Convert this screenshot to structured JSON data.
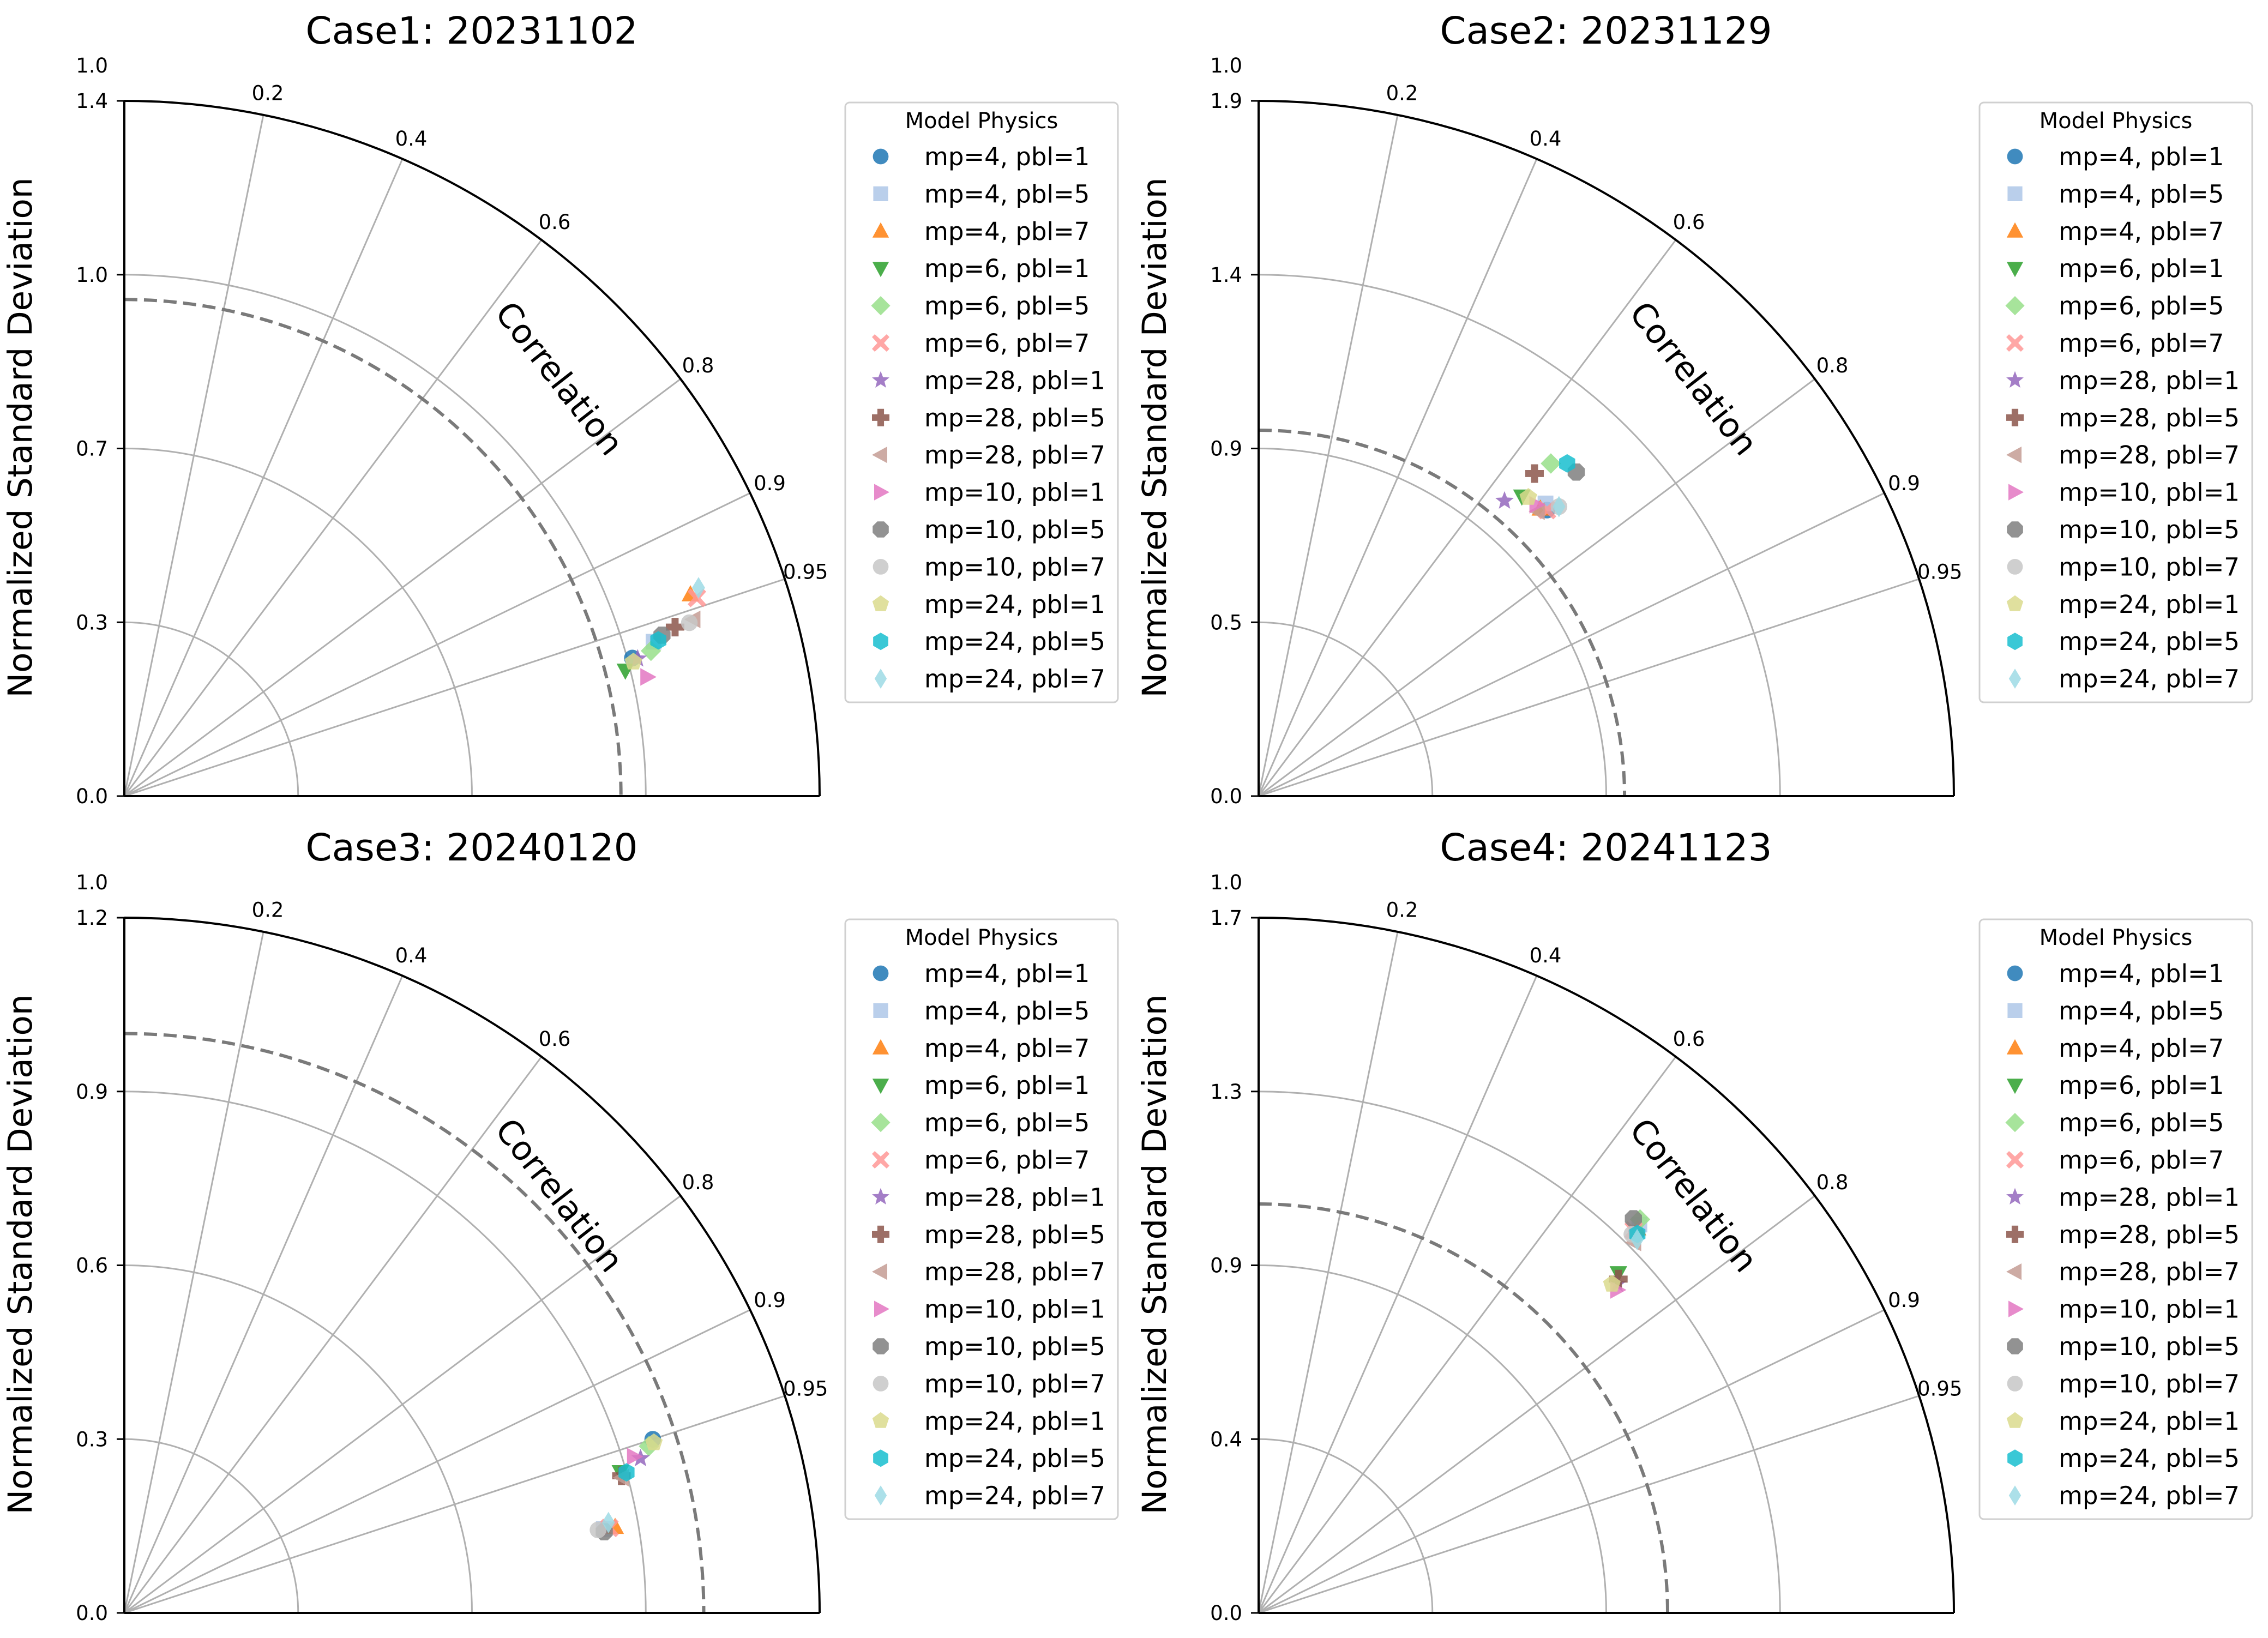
{
  "chart_data": [
    {
      "type": "scatter",
      "subtype": "taylor-diagram",
      "title": "Case1: 20231102",
      "ylabel": "Normalized Standard Deviation",
      "corr_label": "Correlation",
      "std_max": 1.4,
      "std_ticks": [
        "0.0",
        "0.3",
        "0.7",
        "1.0",
        "1.4"
      ],
      "top_label": "1.0",
      "corr_ticks": [
        "0.95",
        "0.9",
        "0.8",
        "0.6",
        "0.4",
        "0.2"
      ],
      "reference_std": 1.0,
      "legend_title": "Model Physics",
      "legend_position": "right",
      "points": [
        {
          "name": "mp=4, pbl=1",
          "std": 1.06,
          "corr": 0.965
        },
        {
          "name": "mp=4, pbl=5",
          "std": 1.11,
          "corr": 0.96
        },
        {
          "name": "mp=4, pbl=7",
          "std": 1.21,
          "corr": 0.942
        },
        {
          "name": "mp=6, pbl=1",
          "std": 1.04,
          "corr": 0.97
        },
        {
          "name": "mp=6, pbl=5",
          "std": 1.1,
          "corr": 0.964
        },
        {
          "name": "mp=6, pbl=7",
          "std": 1.22,
          "corr": 0.945
        },
        {
          "name": "mp=28, pbl=1",
          "std": 1.07,
          "corr": 0.966
        },
        {
          "name": "mp=28, pbl=5",
          "std": 1.16,
          "corr": 0.956
        },
        {
          "name": "mp=28, pbl=7",
          "std": 1.2,
          "corr": 0.955
        },
        {
          "name": "mp=10, pbl=1",
          "std": 1.08,
          "corr": 0.975
        },
        {
          "name": "mp=10, pbl=5",
          "std": 1.13,
          "corr": 0.958
        },
        {
          "name": "mp=10, pbl=7",
          "std": 1.19,
          "corr": 0.956
        },
        {
          "name": "mp=24, pbl=1",
          "std": 1.06,
          "corr": 0.967
        },
        {
          "name": "mp=24, pbl=5",
          "std": 1.12,
          "corr": 0.96
        },
        {
          "name": "mp=24, pbl=7",
          "std": 1.23,
          "corr": 0.94
        }
      ]
    },
    {
      "type": "scatter",
      "subtype": "taylor-diagram",
      "title": "Case2: 20231129",
      "ylabel": "Normalized Standard Deviation",
      "corr_label": "Correlation",
      "std_max": 1.9,
      "std_ticks": [
        "0.0",
        "0.5",
        "0.9",
        "1.4",
        "1.9"
      ],
      "top_label": "1.0",
      "corr_ticks": [
        "0.95",
        "0.9",
        "0.8",
        "0.6",
        "0.4",
        "0.2"
      ],
      "reference_std": 1.0,
      "legend_title": "Model Physics",
      "legend_position": "right",
      "points": [
        {
          "name": "mp=4, pbl=1",
          "std": 1.11,
          "corr": 0.71
        },
        {
          "name": "mp=4, pbl=5",
          "std": 1.12,
          "corr": 0.7
        },
        {
          "name": "mp=4, pbl=7",
          "std": 1.1,
          "corr": 0.7
        },
        {
          "name": "mp=6, pbl=1",
          "std": 1.09,
          "corr": 0.66
        },
        {
          "name": "mp=6, pbl=5",
          "std": 1.21,
          "corr": 0.66
        },
        {
          "name": "mp=6, pbl=7",
          "std": 1.11,
          "corr": 0.71
        },
        {
          "name": "mp=28, pbl=1",
          "std": 1.05,
          "corr": 0.64
        },
        {
          "name": "mp=28, pbl=5",
          "std": 1.16,
          "corr": 0.65
        },
        {
          "name": "mp=28, pbl=7",
          "std": 1.09,
          "corr": 0.7
        },
        {
          "name": "mp=10, pbl=1",
          "std": 1.1,
          "corr": 0.69
        },
        {
          "name": "mp=10, pbl=5",
          "std": 1.24,
          "corr": 0.7
        },
        {
          "name": "mp=10, pbl=7",
          "std": 1.14,
          "corr": 0.72
        },
        {
          "name": "mp=24, pbl=1",
          "std": 1.1,
          "corr": 0.67
        },
        {
          "name": "mp=24, pbl=5",
          "std": 1.24,
          "corr": 0.68
        },
        {
          "name": "mp=24, pbl=7",
          "std": 1.14,
          "corr": 0.72
        }
      ]
    },
    {
      "type": "scatter",
      "subtype": "taylor-diagram",
      "title": "Case3: 20240120",
      "ylabel": "Normalized Standard Deviation",
      "corr_label": "Correlation",
      "std_max": 1.2,
      "std_ticks": [
        "0.0",
        "0.3",
        "0.6",
        "0.9",
        "1.2"
      ],
      "top_label": "1.0",
      "corr_ticks": [
        "0.95",
        "0.9",
        "0.8",
        "0.6",
        "0.4",
        "0.2"
      ],
      "reference_std": 1.0,
      "legend_title": "Model Physics",
      "legend_position": "right",
      "points": [
        {
          "name": "mp=4, pbl=1",
          "std": 0.96,
          "corr": 0.95
        },
        {
          "name": "mp=4, pbl=5",
          "std": 0.84,
          "corr": 0.985
        },
        {
          "name": "mp=4, pbl=7",
          "std": 0.86,
          "corr": 0.985
        },
        {
          "name": "mp=6, pbl=1",
          "std": 0.89,
          "corr": 0.962
        },
        {
          "name": "mp=6, pbl=5",
          "std": 0.95,
          "corr": 0.953
        },
        {
          "name": "mp=6, pbl=7",
          "std": 0.85,
          "corr": 0.985
        },
        {
          "name": "mp=28, pbl=1",
          "std": 0.93,
          "corr": 0.958
        },
        {
          "name": "mp=28, pbl=5",
          "std": 0.89,
          "corr": 0.964
        },
        {
          "name": "mp=28, pbl=7",
          "std": 0.89,
          "corr": 0.965
        },
        {
          "name": "mp=10, pbl=1",
          "std": 0.92,
          "corr": 0.956
        },
        {
          "name": "mp=10, pbl=5",
          "std": 0.84,
          "corr": 0.986
        },
        {
          "name": "mp=10, pbl=7",
          "std": 0.83,
          "corr": 0.985
        },
        {
          "name": "mp=24, pbl=1",
          "std": 0.96,
          "corr": 0.952
        },
        {
          "name": "mp=24, pbl=5",
          "std": 0.9,
          "corr": 0.963
        },
        {
          "name": "mp=24, pbl=7",
          "std": 0.85,
          "corr": 0.983
        }
      ]
    },
    {
      "type": "scatter",
      "subtype": "taylor-diagram",
      "title": "Case4: 20241123",
      "ylabel": "Normalized Standard Deviation",
      "corr_label": "Correlation",
      "std_max": 1.7,
      "std_ticks": [
        "0.0",
        "0.4",
        "0.9",
        "1.3",
        "1.7"
      ],
      "top_label": "1.0",
      "corr_ticks": [
        "0.95",
        "0.9",
        "0.8",
        "0.6",
        "0.4",
        "0.2"
      ],
      "reference_std": 1.0,
      "legend_title": "Model Physics",
      "legend_position": "right",
      "points": [
        {
          "name": "mp=4, pbl=1",
          "std": 1.31,
          "corr": 0.705
        },
        {
          "name": "mp=4, pbl=5",
          "std": 1.33,
          "corr": 0.7
        },
        {
          "name": "mp=4, pbl=7",
          "std": 1.32,
          "corr": 0.702
        },
        {
          "name": "mp=6, pbl=1",
          "std": 1.21,
          "corr": 0.727
        },
        {
          "name": "mp=6, pbl=5",
          "std": 1.34,
          "corr": 0.696
        },
        {
          "name": "mp=6, pbl=7",
          "std": 1.31,
          "corr": 0.7
        },
        {
          "name": "mp=28, pbl=1",
          "std": 1.19,
          "corr": 0.737
        },
        {
          "name": "mp=28, pbl=5",
          "std": 1.2,
          "corr": 0.733
        },
        {
          "name": "mp=28, pbl=7",
          "std": 1.29,
          "corr": 0.712
        },
        {
          "name": "mp=10, pbl=1",
          "std": 1.18,
          "corr": 0.743
        },
        {
          "name": "mp=10, pbl=5",
          "std": 1.33,
          "corr": 0.689
        },
        {
          "name": "mp=10, pbl=7",
          "std": 1.3,
          "corr": 0.702
        },
        {
          "name": "mp=24, pbl=1",
          "std": 1.18,
          "corr": 0.732
        },
        {
          "name": "mp=24, pbl=5",
          "std": 1.31,
          "corr": 0.707
        },
        {
          "name": "mp=24, pbl=7",
          "std": 1.3,
          "corr": 0.712
        }
      ]
    }
  ],
  "series_styles": [
    {
      "marker": "circle",
      "color": "#1f77b4"
    },
    {
      "marker": "square",
      "color": "#aec7e8"
    },
    {
      "marker": "triangle-up",
      "color": "#ff7f0e"
    },
    {
      "marker": "triangle-down",
      "color": "#2ca02c"
    },
    {
      "marker": "diamond",
      "color": "#98df8a"
    },
    {
      "marker": "x",
      "color": "#ff9896"
    },
    {
      "marker": "star",
      "color": "#9467bd"
    },
    {
      "marker": "plus",
      "color": "#8c564b"
    },
    {
      "marker": "triangle-left",
      "color": "#c49c94"
    },
    {
      "marker": "triangle-right",
      "color": "#e377c2"
    },
    {
      "marker": "octagon",
      "color": "#7f7f7f"
    },
    {
      "marker": "circle",
      "color": "#c7c7c7"
    },
    {
      "marker": "pentagon",
      "color": "#dbdb8d"
    },
    {
      "marker": "hexagon",
      "color": "#17becf"
    },
    {
      "marker": "thin-diamond",
      "color": "#9edae5"
    }
  ]
}
